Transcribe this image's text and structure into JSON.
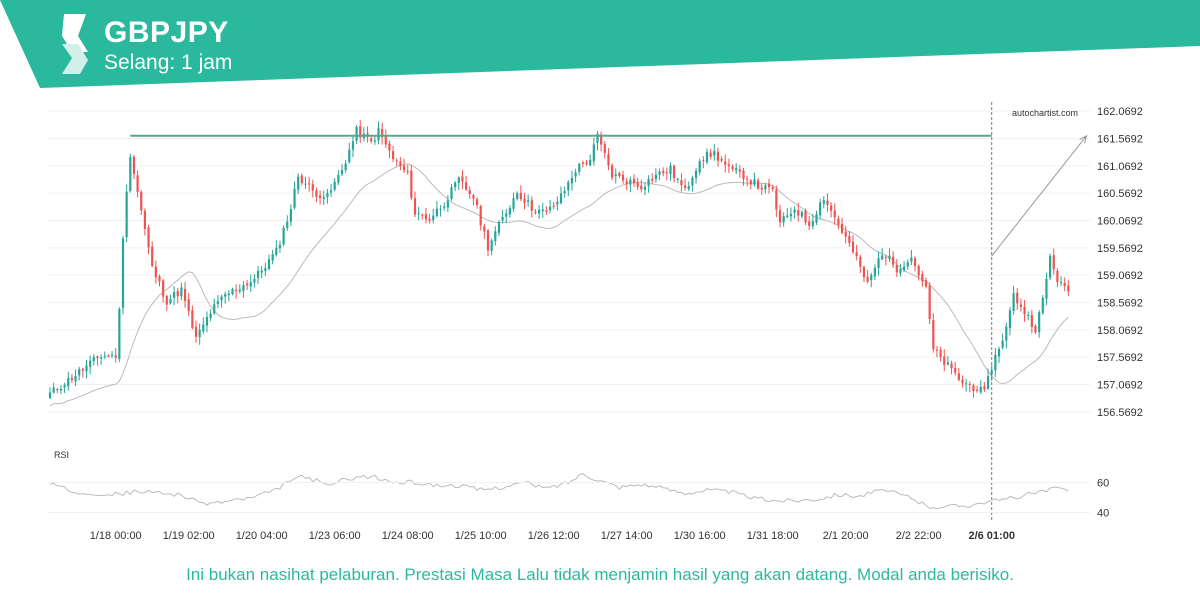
{
  "header": {
    "symbol": "GBPJPY",
    "interval": "Selang: 1 jam",
    "brand_color": "#2bb99e",
    "logo_icon": "autochartist-logo-icon"
  },
  "watermark": "autochartist.com",
  "disclaimer": "Ini bukan nasihat pelaburan. Prestasi Masa Lalu tidak menjamin hasil yang akan datang. Modal anda berisiko.",
  "colors": {
    "up_candle": "#26a69a",
    "down_candle": "#ef5350",
    "resistance_line": "#5aa88a",
    "moving_average": "#bbbbbb",
    "rsi_line": "#bbbbbb",
    "projection": "#999999",
    "grid": "#f0f0f0"
  },
  "chart_data": {
    "type": "candlestick",
    "price_axis": {
      "range": [
        156.2,
        162.2
      ],
      "ticks": [
        162.0692,
        161.5692,
        161.0692,
        160.5692,
        160.0692,
        159.5692,
        159.0692,
        158.5692,
        158.0692,
        157.5692,
        157.0692,
        156.5692
      ],
      "tick_labels": [
        "162.0692",
        "161.5692",
        "161.0692",
        "160.5692",
        "160.0692",
        "159.5692",
        "159.0692",
        "158.5692",
        "158.0692",
        "157.5692",
        "157.0692",
        "156.5692"
      ]
    },
    "x_axis": {
      "tick_labels": [
        "1/18 00:00",
        "1/19 02:00",
        "1/20 04:00",
        "1/23 06:00",
        "1/24 08:00",
        "1/25 10:00",
        "1/26 12:00",
        "1/27 14:00",
        "1/30 16:00",
        "1/31 18:00",
        "2/1 20:00",
        "2/2 22:00",
        "2/6 01:00"
      ],
      "tick_bars": [
        18,
        38,
        58,
        78,
        98,
        118,
        138,
        158,
        178,
        198,
        218,
        238,
        258
      ],
      "highlight_label": "2/6 01:00",
      "highlight_bar": 258
    },
    "resistance": {
      "level": 161.62,
      "from_bar": 22,
      "to_bar": 258
    },
    "projection": {
      "from_bar": 258,
      "from_price": 159.42,
      "to_bar": 284,
      "to_price": 161.62
    },
    "close_anchors": [
      [
        0,
        156.9
      ],
      [
        8,
        157.3
      ],
      [
        14,
        157.6
      ],
      [
        18,
        157.6
      ],
      [
        19,
        158.4
      ],
      [
        20,
        159.8
      ],
      [
        22,
        161.3
      ],
      [
        24,
        160.6
      ],
      [
        28,
        159.2
      ],
      [
        32,
        158.6
      ],
      [
        36,
        158.8
      ],
      [
        40,
        157.9
      ],
      [
        44,
        158.4
      ],
      [
        48,
        158.7
      ],
      [
        56,
        159.0
      ],
      [
        62,
        159.5
      ],
      [
        66,
        160.3
      ],
      [
        68,
        160.9
      ],
      [
        72,
        160.6
      ],
      [
        76,
        160.5
      ],
      [
        80,
        161.0
      ],
      [
        84,
        161.7
      ],
      [
        88,
        161.5
      ],
      [
        90,
        161.7
      ],
      [
        94,
        161.2
      ],
      [
        98,
        160.9
      ],
      [
        100,
        160.2
      ],
      [
        104,
        160.1
      ],
      [
        108,
        160.4
      ],
      [
        112,
        160.8
      ],
      [
        116,
        160.5
      ],
      [
        120,
        159.6
      ],
      [
        124,
        160.1
      ],
      [
        128,
        160.6
      ],
      [
        132,
        160.3
      ],
      [
        136,
        160.2
      ],
      [
        140,
        160.5
      ],
      [
        144,
        161.0
      ],
      [
        148,
        161.2
      ],
      [
        150,
        161.6
      ],
      [
        154,
        160.9
      ],
      [
        158,
        160.8
      ],
      [
        162,
        160.7
      ],
      [
        166,
        160.9
      ],
      [
        170,
        161.0
      ],
      [
        174,
        160.6
      ],
      [
        178,
        161.2
      ],
      [
        182,
        161.3
      ],
      [
        186,
        161.0
      ],
      [
        190,
        160.9
      ],
      [
        194,
        160.7
      ],
      [
        198,
        160.6
      ],
      [
        200,
        160.0
      ],
      [
        204,
        160.3
      ],
      [
        208,
        160.0
      ],
      [
        212,
        160.5
      ],
      [
        216,
        160.0
      ],
      [
        220,
        159.5
      ],
      [
        224,
        158.9
      ],
      [
        228,
        159.5
      ],
      [
        232,
        159.2
      ],
      [
        236,
        159.4
      ],
      [
        240,
        158.8
      ],
      [
        242,
        157.7
      ],
      [
        246,
        157.4
      ],
      [
        250,
        157.1
      ],
      [
        254,
        157.0
      ],
      [
        256,
        156.9
      ],
      [
        258,
        157.4
      ],
      [
        262,
        158.1
      ],
      [
        264,
        158.7
      ],
      [
        268,
        158.3
      ],
      [
        270,
        158.1
      ],
      [
        272,
        158.6
      ],
      [
        274,
        159.4
      ],
      [
        276,
        159.0
      ],
      [
        278,
        158.8
      ]
    ],
    "rsi": {
      "label": "RSI",
      "ticks": [
        60,
        40
      ],
      "tick_labels": [
        "60",
        "40"
      ],
      "range": [
        35,
        75
      ],
      "anchors": [
        [
          0,
          59
        ],
        [
          6,
          54
        ],
        [
          12,
          53
        ],
        [
          18,
          52
        ],
        [
          24,
          54
        ],
        [
          30,
          53
        ],
        [
          36,
          52
        ],
        [
          40,
          47
        ],
        [
          44,
          46
        ],
        [
          50,
          48
        ],
        [
          56,
          50
        ],
        [
          62,
          55
        ],
        [
          66,
          62
        ],
        [
          70,
          64
        ],
        [
          76,
          58
        ],
        [
          82,
          63
        ],
        [
          88,
          64
        ],
        [
          94,
          60
        ],
        [
          100,
          60
        ],
        [
          106,
          58
        ],
        [
          112,
          58
        ],
        [
          118,
          55
        ],
        [
          124,
          57
        ],
        [
          130,
          60
        ],
        [
          136,
          56
        ],
        [
          142,
          60
        ],
        [
          146,
          66
        ],
        [
          150,
          62
        ],
        [
          156,
          57
        ],
        [
          162,
          59
        ],
        [
          168,
          56
        ],
        [
          174,
          53
        ],
        [
          180,
          55
        ],
        [
          186,
          54
        ],
        [
          192,
          50
        ],
        [
          198,
          48
        ],
        [
          204,
          48
        ],
        [
          210,
          49
        ],
        [
          216,
          52
        ],
        [
          222,
          51
        ],
        [
          226,
          54
        ],
        [
          230,
          54
        ],
        [
          236,
          50
        ],
        [
          240,
          44
        ],
        [
          246,
          44
        ],
        [
          252,
          45
        ],
        [
          256,
          47
        ],
        [
          260,
          48
        ],
        [
          264,
          50
        ],
        [
          268,
          52
        ],
        [
          272,
          54
        ],
        [
          276,
          56
        ],
        [
          278,
          55
        ]
      ]
    }
  }
}
